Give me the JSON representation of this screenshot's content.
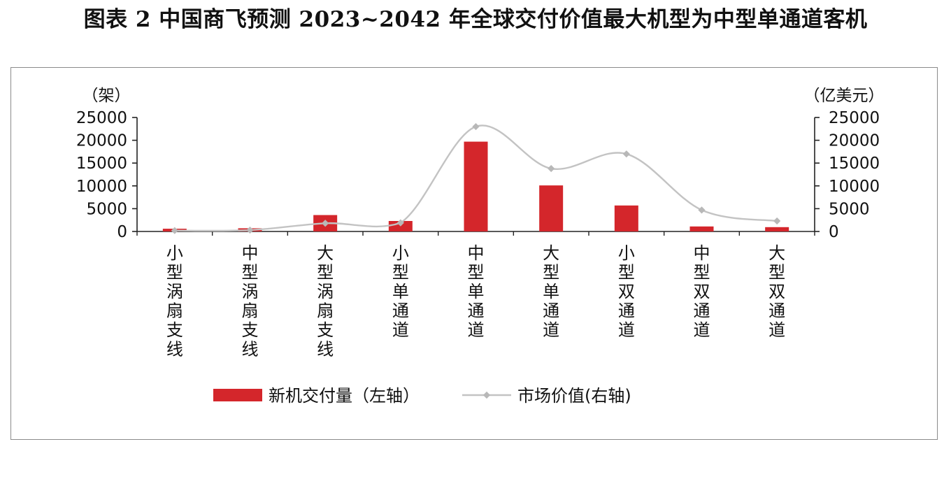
{
  "title": "图表 2  中国商飞预测 2023~2042 年全球交付价值最大机型为中型单通道客机",
  "chart_data": {
    "type": "bar+line",
    "categories": [
      "小型涡扇支线",
      "中型涡扇支线",
      "大型涡扇支线",
      "小型单通道",
      "中型单通道",
      "大型单通道",
      "小型双通道",
      "中型双通道",
      "大型双通道"
    ],
    "series": [
      {
        "name": "新机交付量（左轴）",
        "kind": "bar",
        "axis": "left",
        "values": [
          600,
          700,
          3600,
          2300,
          19700,
          10100,
          5700,
          1100,
          950
        ]
      },
      {
        "name": "市场价值(右轴)",
        "kind": "line",
        "axis": "right",
        "values": [
          200,
          300,
          1800,
          1900,
          23000,
          13800,
          17000,
          4700,
          2300
        ]
      }
    ],
    "left_axis": {
      "unit": "（架）",
      "range": [
        0,
        25000
      ],
      "ticks": [
        "25000",
        "20000",
        "15000",
        "10000",
        "5000",
        "0"
      ]
    },
    "right_axis": {
      "unit": "（亿美元）",
      "range": [
        0,
        25000
      ],
      "ticks": [
        "25000",
        "20000",
        "15000",
        "10000",
        "5000",
        "0"
      ]
    },
    "colors": {
      "bar": "#d4262b",
      "line": "#c3c3c3",
      "marker": "#b8b8b8"
    }
  }
}
